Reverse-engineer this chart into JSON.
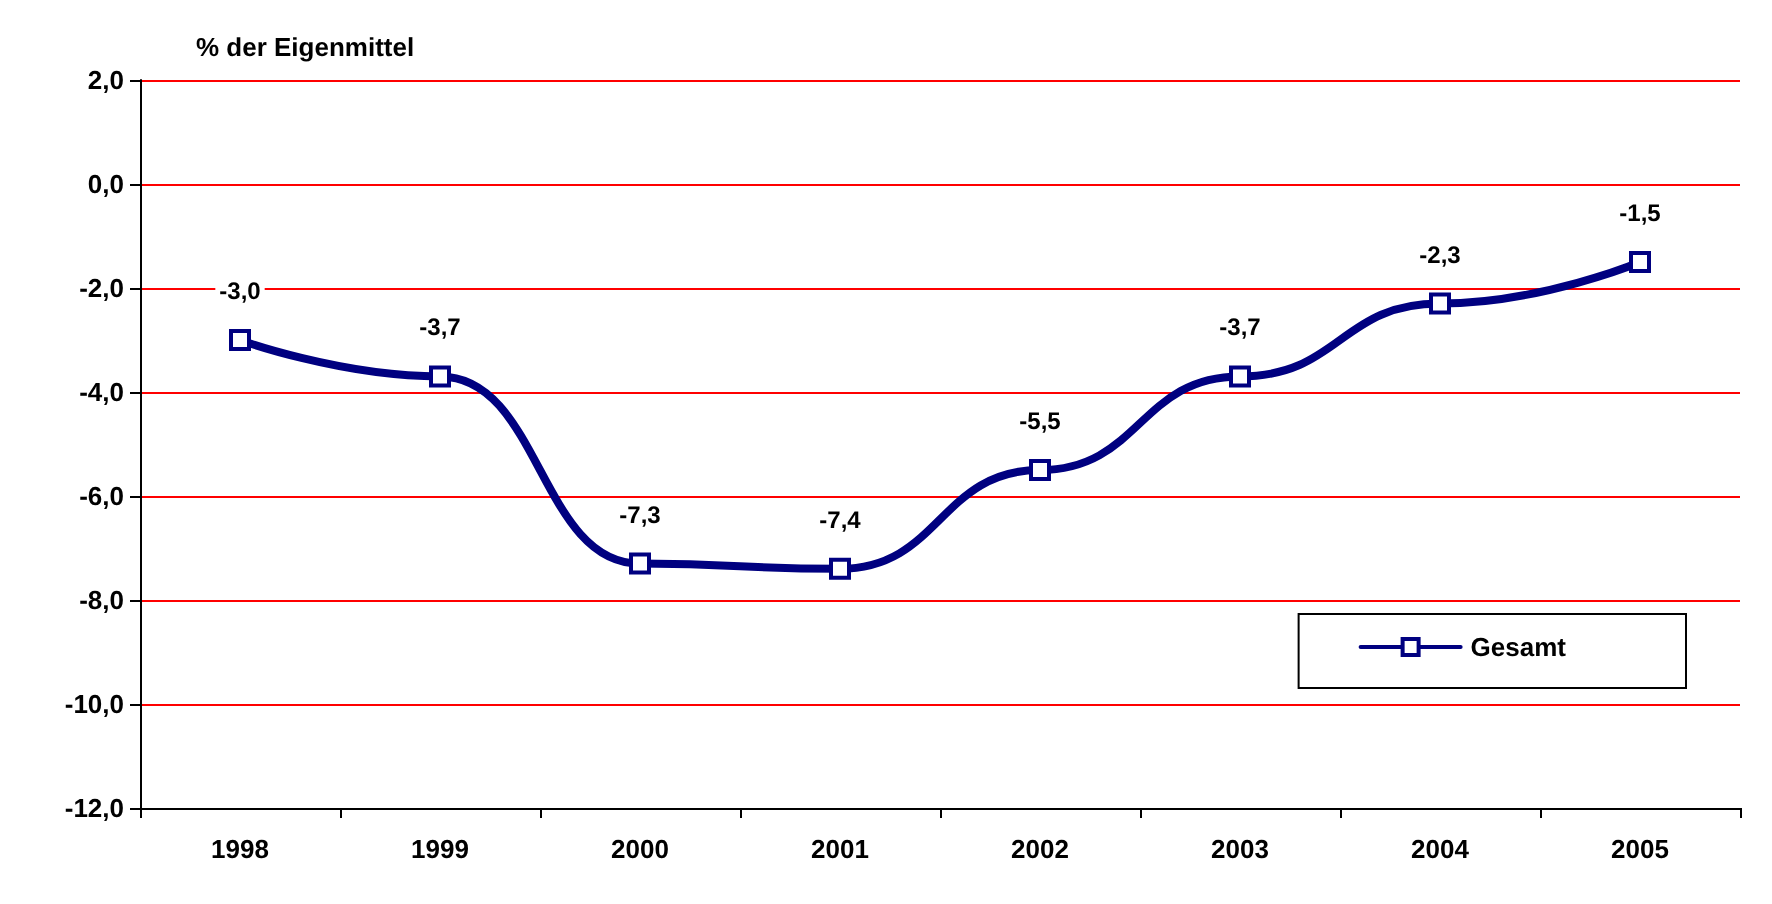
{
  "chart_data": {
    "type": "line",
    "ylabel": "% der Eigenmittel",
    "categories": [
      "1998",
      "1999",
      "2000",
      "2001",
      "2002",
      "2003",
      "2004",
      "2005"
    ],
    "series": [
      {
        "name": "Gesamt",
        "color": "#000080",
        "values": [
          -3.0,
          -3.7,
          -7.3,
          -7.4,
          -5.5,
          -3.7,
          -2.3,
          -1.5
        ],
        "value_labels": [
          "-3,0",
          "-3,7",
          "-7,3",
          "-7,4",
          "-5,5",
          "-3,7",
          "-2,3",
          "-1,5"
        ]
      }
    ],
    "ylim": [
      -12,
      2
    ],
    "yticks": [
      {
        "value": -12,
        "label": "-12,0"
      },
      {
        "value": -10,
        "label": "-10,0"
      },
      {
        "value": -8,
        "label": "-8,0"
      },
      {
        "value": -6,
        "label": "-6,0"
      },
      {
        "value": -4,
        "label": "-4,0"
      },
      {
        "value": -2,
        "label": "-2,0"
      },
      {
        "value": 0,
        "label": "0,0"
      },
      {
        "value": 2,
        "label": "2,0"
      }
    ],
    "grid": "y",
    "legend": "bottom right",
    "marker": "square",
    "line_style": "solid"
  }
}
